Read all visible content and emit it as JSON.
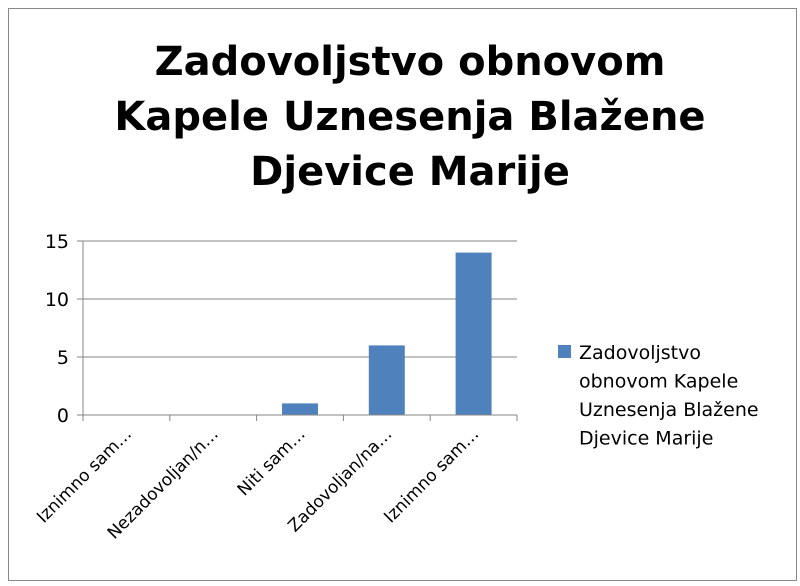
{
  "chart_data": {
    "type": "bar",
    "title": "Zadovoljstvo obnovom Kapele Uznesenja Blažene Djevice Marije",
    "categories": [
      "Iznimno sam…",
      "Nezadovoljan/n…",
      "Niti sam…",
      "Zadovoljan/na…",
      "Iznimno sam…"
    ],
    "series": [
      {
        "name": "Zadovoljstvo obnovom Kapele Uznesenja Blažene Djevice Marije",
        "color": "#4f81bd",
        "values": [
          0,
          0,
          1,
          6,
          14
        ]
      }
    ],
    "ylim": [
      0,
      15
    ],
    "yticks": [
      0,
      5,
      10,
      15
    ],
    "grid": true,
    "legend": "right"
  }
}
